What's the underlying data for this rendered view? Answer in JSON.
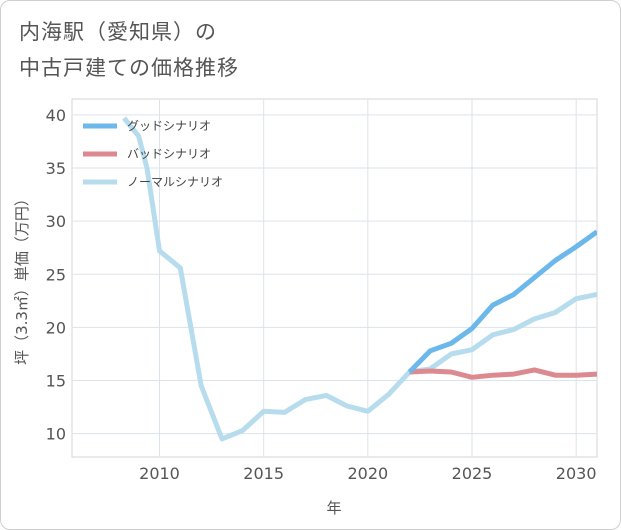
{
  "chart_data": {
    "type": "line",
    "title_line1": "内海駅（愛知県）の",
    "title_line2": "中古戸建ての価格推移",
    "xlabel": "年",
    "ylabel": "坪（3.3㎡）単価（万円）",
    "xlim": [
      2005.8,
      2031
    ],
    "ylim": [
      7.8,
      41.5
    ],
    "xticks": [
      2010,
      2015,
      2020,
      2025,
      2030
    ],
    "yticks": [
      10,
      15,
      20,
      25,
      30,
      35,
      40
    ],
    "legend_position": "top-left",
    "series": [
      {
        "name": "グッドシナリオ",
        "color": "#6cb8ea",
        "x": [
          2022,
          2023,
          2024,
          2025,
          2026,
          2027,
          2028,
          2029,
          2030,
          2031
        ],
        "y": [
          15.8,
          17.8,
          18.5,
          19.9,
          22.1,
          23.1,
          24.7,
          26.3,
          27.6,
          29.0
        ]
      },
      {
        "name": "バッドシナリオ",
        "color": "#dc8a90",
        "x": [
          2022,
          2023,
          2024,
          2025,
          2026,
          2027,
          2028,
          2029,
          2030,
          2031
        ],
        "y": [
          15.8,
          15.9,
          15.8,
          15.3,
          15.5,
          15.6,
          16.0,
          15.5,
          15.5,
          15.6
        ]
      },
      {
        "name": "ノーマルシナリオ",
        "color": "#b6dced",
        "x": [
          2008.3,
          2009,
          2009.4,
          2010,
          2011,
          2012,
          2013,
          2014,
          2015,
          2016,
          2017,
          2018,
          2019,
          2020,
          2021,
          2022,
          2023,
          2024,
          2025,
          2026,
          2027,
          2028,
          2029,
          2030,
          2031
        ],
        "y": [
          39.7,
          38.0,
          35.0,
          27.2,
          25.6,
          14.5,
          9.5,
          10.3,
          12.1,
          12.0,
          13.2,
          13.6,
          12.6,
          12.1,
          13.7,
          15.8,
          16.1,
          17.5,
          17.9,
          19.3,
          19.8,
          20.8,
          21.4,
          22.7,
          23.1
        ]
      }
    ]
  }
}
